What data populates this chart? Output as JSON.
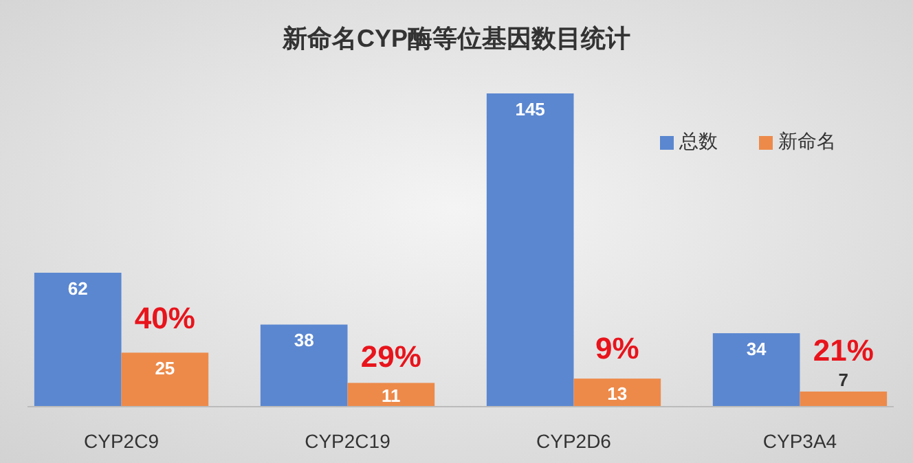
{
  "chart_data": {
    "type": "bar",
    "title": "新命名CYP酶等位基因数目统计",
    "categories": [
      "CYP2C9",
      "CYP2C19",
      "CYP2D6",
      "CYP3A4"
    ],
    "series": [
      {
        "name": "总数",
        "color": "#5b87d0",
        "values": [
          62,
          38,
          145,
          34
        ]
      },
      {
        "name": "新命名",
        "color": "#ed8a4a",
        "values": [
          25,
          11,
          13,
          7
        ]
      }
    ],
    "data_labels": true,
    "legend": "top right",
    "annotations": [
      {
        "text": "40%",
        "x": "CYP2C9",
        "y": 40
      },
      {
        "text": "29%",
        "x": "CYP2C19",
        "y": 22
      },
      {
        "text": "9%",
        "x": "CYP2D6",
        "y": 26
      },
      {
        "text": "21%",
        "x": "CYP3A4",
        "y": 25
      }
    ]
  }
}
